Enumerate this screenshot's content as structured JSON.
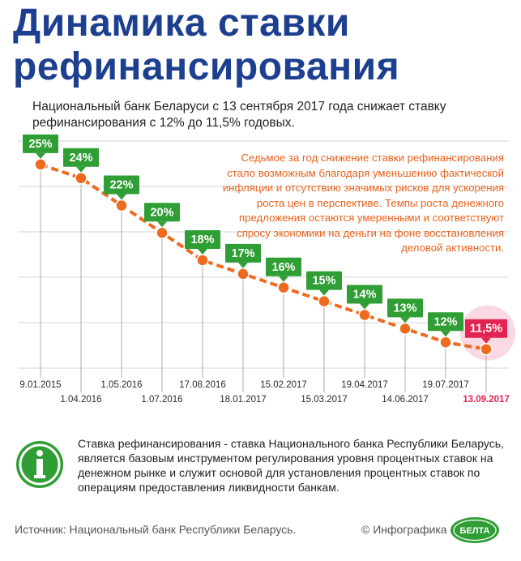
{
  "header": {
    "title_line1": "Динамика ставки",
    "title_line2": "рефинансирования",
    "subtitle": "Национальный банк Беларуси с 13 сентября 2017 года снижает ставку рефинансирования с 12% до 11,5% годовых."
  },
  "note": "Седьмое за год снижение ставки рефинансирования стало возможным благодаря уменьшению фактической инфляции и отсутствию значимых рисков для ускорения роста цен в перспективе. Темпы роста денежного предложения остаются умеренными и соответствуют спросу экономики на деньги на фоне восстановления деловой активности.",
  "info": {
    "text": "Ставка рефинансирования - ставка Национального банка Республики Беларусь, является базовым инструментом регулирования уровня процентных ставок на денежном рынке и служит основой для установления процентных ставок по операциям предоставления ликвидности банкам."
  },
  "footer": {
    "source": "Источник: Национальный банк Республики Беларусь.",
    "credit": "© Инфографика",
    "logo_text": "БЕЛТА"
  },
  "colors": {
    "title": "#1d3f8f",
    "green": "#2f9e34",
    "orange": "#ee6a1f",
    "highlight": "#e32351",
    "grid": "#d6d6d6"
  },
  "chart_data": {
    "type": "line",
    "x": [
      "9.01.2015",
      "1.04.2016",
      "1.05.2016",
      "1.07.2016",
      "17.08.2016",
      "18.01.2017",
      "15.02.2017",
      "15.03.2017",
      "19.04.2017",
      "14.06.2017",
      "19.07.2017",
      "13.09.2017"
    ],
    "values": [
      25,
      24,
      22,
      20,
      18,
      17,
      16,
      15,
      14,
      13,
      12,
      11.5
    ],
    "labels": [
      "25%",
      "24%",
      "22%",
      "20%",
      "18%",
      "17%",
      "16%",
      "15%",
      "14%",
      "13%",
      "12%",
      "11,5%"
    ],
    "ylim": [
      10,
      26
    ],
    "grid": true,
    "highlight_last": true
  }
}
